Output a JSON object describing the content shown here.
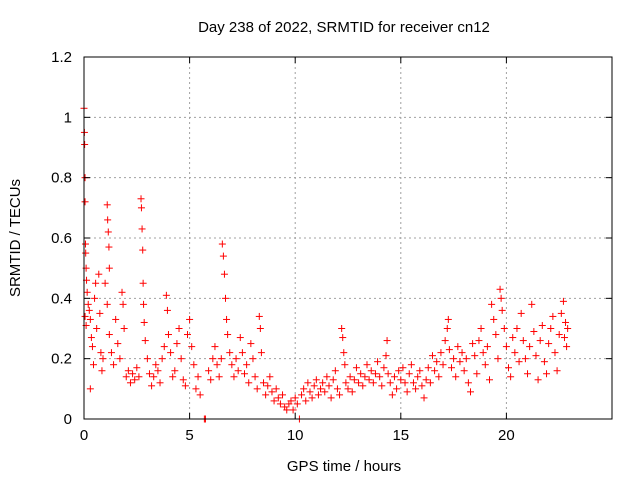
{
  "chart_data": {
    "type": "scatter",
    "title": "Day 238 of 2022, SRMTID for receiver cn12",
    "xlabel": "GPS time / hours",
    "ylabel": "SRMTID / TECUs",
    "xlim": [
      0,
      25
    ],
    "ylim": [
      0,
      1.2
    ],
    "x_ticks": [
      0,
      5,
      10,
      15,
      20
    ],
    "x_tick_labels": [
      "0",
      "5",
      "10",
      "15",
      "20"
    ],
    "y_ticks": [
      0,
      0.2,
      0.4,
      0.6,
      0.8,
      1.0,
      1.2
    ],
    "y_tick_labels": [
      "0",
      "0.2",
      "0.4",
      "0.6",
      "0.8",
      "1",
      "1.2"
    ],
    "grid": true,
    "marker": "+",
    "color": "#ff0000",
    "series": [
      {
        "name": "SRMTID",
        "points": [
          [
            0.0,
            1.03
          ],
          [
            0.02,
            0.95
          ],
          [
            0.03,
            0.91
          ],
          [
            0.05,
            0.8
          ],
          [
            0.05,
            0.72
          ],
          [
            0.07,
            0.58
          ],
          [
            0.08,
            0.55
          ],
          [
            0.1,
            0.5
          ],
          [
            0.12,
            0.46
          ],
          [
            0.15,
            0.42
          ],
          [
            0.05,
            0.34
          ],
          [
            0.1,
            0.31
          ],
          [
            0.2,
            0.38
          ],
          [
            0.25,
            0.36
          ],
          [
            0.3,
            0.33
          ],
          [
            0.35,
            0.27
          ],
          [
            0.4,
            0.24
          ],
          [
            0.3,
            0.1
          ],
          [
            0.45,
            0.18
          ],
          [
            0.5,
            0.4
          ],
          [
            0.55,
            0.45
          ],
          [
            0.6,
            0.3
          ],
          [
            0.7,
            0.48
          ],
          [
            0.75,
            0.35
          ],
          [
            0.8,
            0.22
          ],
          [
            0.85,
            0.16
          ],
          [
            0.9,
            0.2
          ],
          [
            1.0,
            0.45
          ],
          [
            1.1,
            0.38
          ],
          [
            1.2,
            0.28
          ],
          [
            1.1,
            0.71
          ],
          [
            1.12,
            0.66
          ],
          [
            1.15,
            0.62
          ],
          [
            1.18,
            0.57
          ],
          [
            1.2,
            0.5
          ],
          [
            1.3,
            0.22
          ],
          [
            1.4,
            0.18
          ],
          [
            1.5,
            0.33
          ],
          [
            1.6,
            0.25
          ],
          [
            1.7,
            0.2
          ],
          [
            1.8,
            0.42
          ],
          [
            1.85,
            0.38
          ],
          [
            1.9,
            0.3
          ],
          [
            2.0,
            0.14
          ],
          [
            2.1,
            0.16
          ],
          [
            2.2,
            0.12
          ],
          [
            2.3,
            0.15
          ],
          [
            2.4,
            0.13
          ],
          [
            2.5,
            0.17
          ],
          [
            2.6,
            0.14
          ],
          [
            2.7,
            0.73
          ],
          [
            2.72,
            0.7
          ],
          [
            2.75,
            0.63
          ],
          [
            2.78,
            0.56
          ],
          [
            2.8,
            0.45
          ],
          [
            2.82,
            0.38
          ],
          [
            2.85,
            0.32
          ],
          [
            2.9,
            0.26
          ],
          [
            3.0,
            0.2
          ],
          [
            3.1,
            0.15
          ],
          [
            3.2,
            0.11
          ],
          [
            3.3,
            0.14
          ],
          [
            3.4,
            0.18
          ],
          [
            3.5,
            0.16
          ],
          [
            3.6,
            0.12
          ],
          [
            3.7,
            0.2
          ],
          [
            3.8,
            0.24
          ],
          [
            3.9,
            0.41
          ],
          [
            3.95,
            0.36
          ],
          [
            4.0,
            0.28
          ],
          [
            4.1,
            0.22
          ],
          [
            4.2,
            0.14
          ],
          [
            4.3,
            0.16
          ],
          [
            4.4,
            0.25
          ],
          [
            4.5,
            0.3
          ],
          [
            4.6,
            0.2
          ],
          [
            4.7,
            0.13
          ],
          [
            4.8,
            0.11
          ],
          [
            4.9,
            0.28
          ],
          [
            5.0,
            0.33
          ],
          [
            5.1,
            0.24
          ],
          [
            5.2,
            0.18
          ],
          [
            5.3,
            0.1
          ],
          [
            5.4,
            0.14
          ],
          [
            5.5,
            0.08
          ],
          [
            5.7,
            0.0
          ],
          [
            5.75,
            0.0
          ],
          [
            5.9,
            0.16
          ],
          [
            6.0,
            0.13
          ],
          [
            6.1,
            0.2
          ],
          [
            6.2,
            0.24
          ],
          [
            6.3,
            0.18
          ],
          [
            6.4,
            0.14
          ],
          [
            6.5,
            0.2
          ],
          [
            6.55,
            0.58
          ],
          [
            6.6,
            0.54
          ],
          [
            6.65,
            0.48
          ],
          [
            6.7,
            0.4
          ],
          [
            6.75,
            0.33
          ],
          [
            6.8,
            0.28
          ],
          [
            6.9,
            0.22
          ],
          [
            7.0,
            0.18
          ],
          [
            7.1,
            0.14
          ],
          [
            7.2,
            0.2
          ],
          [
            7.3,
            0.16
          ],
          [
            7.4,
            0.27
          ],
          [
            7.5,
            0.22
          ],
          [
            7.6,
            0.15
          ],
          [
            7.7,
            0.18
          ],
          [
            7.8,
            0.12
          ],
          [
            7.9,
            0.25
          ],
          [
            8.0,
            0.2
          ],
          [
            8.1,
            0.14
          ],
          [
            8.2,
            0.1
          ],
          [
            8.3,
            0.34
          ],
          [
            8.35,
            0.3
          ],
          [
            8.4,
            0.22
          ],
          [
            8.5,
            0.12
          ],
          [
            8.6,
            0.08
          ],
          [
            8.7,
            0.11
          ],
          [
            8.8,
            0.14
          ],
          [
            8.9,
            0.09
          ],
          [
            9.0,
            0.06
          ],
          [
            9.1,
            0.1
          ],
          [
            9.2,
            0.07
          ],
          [
            9.3,
            0.05
          ],
          [
            9.4,
            0.08
          ],
          [
            9.5,
            0.04
          ],
          [
            9.6,
            0.03
          ],
          [
            9.7,
            0.05
          ],
          [
            9.8,
            0.06
          ],
          [
            9.9,
            0.03
          ],
          [
            10.0,
            0.07
          ],
          [
            10.1,
            0.05
          ],
          [
            10.2,
            0.0
          ],
          [
            10.3,
            0.08
          ],
          [
            10.4,
            0.1
          ],
          [
            10.5,
            0.06
          ],
          [
            10.6,
            0.12
          ],
          [
            10.7,
            0.09
          ],
          [
            10.8,
            0.07
          ],
          [
            10.9,
            0.11
          ],
          [
            11.0,
            0.13
          ],
          [
            11.1,
            0.08
          ],
          [
            11.2,
            0.1
          ],
          [
            11.3,
            0.12
          ],
          [
            11.4,
            0.09
          ],
          [
            11.5,
            0.14
          ],
          [
            11.6,
            0.11
          ],
          [
            11.7,
            0.07
          ],
          [
            11.8,
            0.13
          ],
          [
            11.9,
            0.16
          ],
          [
            12.0,
            0.1
          ],
          [
            12.1,
            0.08
          ],
          [
            12.2,
            0.3
          ],
          [
            12.25,
            0.27
          ],
          [
            12.3,
            0.22
          ],
          [
            12.35,
            0.18
          ],
          [
            12.4,
            0.12
          ],
          [
            12.5,
            0.1
          ],
          [
            12.6,
            0.14
          ],
          [
            12.7,
            0.09
          ],
          [
            12.8,
            0.13
          ],
          [
            12.9,
            0.17
          ],
          [
            13.0,
            0.12
          ],
          [
            13.1,
            0.15
          ],
          [
            13.2,
            0.11
          ],
          [
            13.3,
            0.14
          ],
          [
            13.4,
            0.18
          ],
          [
            13.5,
            0.13
          ],
          [
            13.6,
            0.16
          ],
          [
            13.7,
            0.12
          ],
          [
            13.8,
            0.15
          ],
          [
            13.9,
            0.19
          ],
          [
            14.0,
            0.14
          ],
          [
            14.1,
            0.11
          ],
          [
            14.2,
            0.17
          ],
          [
            14.3,
            0.21
          ],
          [
            14.35,
            0.26
          ],
          [
            14.4,
            0.15
          ],
          [
            14.5,
            0.12
          ],
          [
            14.6,
            0.08
          ],
          [
            14.7,
            0.14
          ],
          [
            14.8,
            0.1
          ],
          [
            14.9,
            0.16
          ],
          [
            15.0,
            0.13
          ],
          [
            15.1,
            0.17
          ],
          [
            15.2,
            0.12
          ],
          [
            15.3,
            0.09
          ],
          [
            15.4,
            0.15
          ],
          [
            15.5,
            0.18
          ],
          [
            15.6,
            0.12
          ],
          [
            15.7,
            0.1
          ],
          [
            15.8,
            0.14
          ],
          [
            15.9,
            0.16
          ],
          [
            16.0,
            0.11
          ],
          [
            16.1,
            0.07
          ],
          [
            16.2,
            0.13
          ],
          [
            16.3,
            0.17
          ],
          [
            16.4,
            0.12
          ],
          [
            16.5,
            0.21
          ],
          [
            16.6,
            0.16
          ],
          [
            16.7,
            0.19
          ],
          [
            16.8,
            0.14
          ],
          [
            16.9,
            0.22
          ],
          [
            17.0,
            0.18
          ],
          [
            17.1,
            0.26
          ],
          [
            17.2,
            0.3
          ],
          [
            17.25,
            0.33
          ],
          [
            17.3,
            0.23
          ],
          [
            17.4,
            0.17
          ],
          [
            17.5,
            0.2
          ],
          [
            17.6,
            0.14
          ],
          [
            17.7,
            0.24
          ],
          [
            17.8,
            0.19
          ],
          [
            17.9,
            0.22
          ],
          [
            18.0,
            0.16
          ],
          [
            18.1,
            0.2
          ],
          [
            18.2,
            0.12
          ],
          [
            18.3,
            0.09
          ],
          [
            18.4,
            0.25
          ],
          [
            18.5,
            0.21
          ],
          [
            18.6,
            0.15
          ],
          [
            18.7,
            0.26
          ],
          [
            18.8,
            0.3
          ],
          [
            18.9,
            0.22
          ],
          [
            19.0,
            0.18
          ],
          [
            19.1,
            0.24
          ],
          [
            19.2,
            0.13
          ],
          [
            19.3,
            0.38
          ],
          [
            19.4,
            0.33
          ],
          [
            19.5,
            0.28
          ],
          [
            19.6,
            0.2
          ],
          [
            19.7,
            0.43
          ],
          [
            19.75,
            0.4
          ],
          [
            19.8,
            0.36
          ],
          [
            19.9,
            0.3
          ],
          [
            20.0,
            0.24
          ],
          [
            20.1,
            0.17
          ],
          [
            20.2,
            0.14
          ],
          [
            20.3,
            0.27
          ],
          [
            20.4,
            0.22
          ],
          [
            20.5,
            0.3
          ],
          [
            20.6,
            0.19
          ],
          [
            20.7,
            0.35
          ],
          [
            20.8,
            0.26
          ],
          [
            20.9,
            0.2
          ],
          [
            21.0,
            0.15
          ],
          [
            21.1,
            0.24
          ],
          [
            21.2,
            0.38
          ],
          [
            21.3,
            0.29
          ],
          [
            21.4,
            0.21
          ],
          [
            21.5,
            0.13
          ],
          [
            21.6,
            0.26
          ],
          [
            21.7,
            0.31
          ],
          [
            21.8,
            0.19
          ],
          [
            21.9,
            0.15
          ],
          [
            22.0,
            0.25
          ],
          [
            22.1,
            0.3
          ],
          [
            22.2,
            0.34
          ],
          [
            22.3,
            0.22
          ],
          [
            22.4,
            0.16
          ],
          [
            22.5,
            0.28
          ],
          [
            22.6,
            0.35
          ],
          [
            22.7,
            0.39
          ],
          [
            22.75,
            0.27
          ],
          [
            22.8,
            0.32
          ],
          [
            22.85,
            0.24
          ],
          [
            22.9,
            0.3
          ]
        ]
      }
    ]
  }
}
